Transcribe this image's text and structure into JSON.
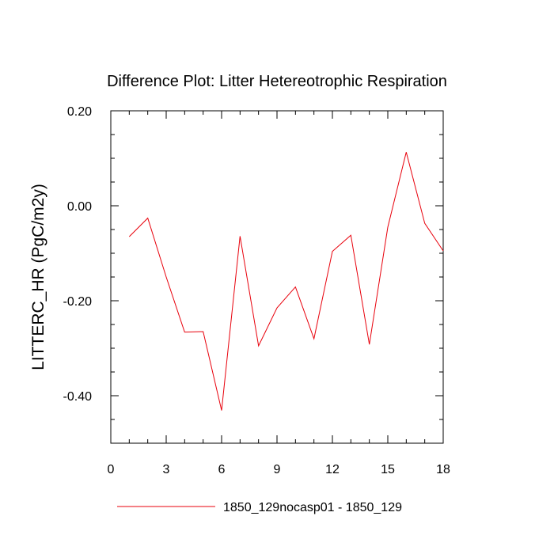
{
  "chart_data": {
    "type": "line",
    "title": "Difference Plot: Litter Hetereotrophic Respiration",
    "xlabel": "",
    "ylabel": "LITTERC_HR  (PgC/m2y)",
    "xlim": [
      0,
      18
    ],
    "ylim": [
      -0.5,
      0.2
    ],
    "x_ticks": [
      0,
      3,
      6,
      9,
      12,
      15,
      18
    ],
    "x_tick_labels": [
      "0",
      "3",
      "6",
      "9",
      "12",
      "15",
      "18"
    ],
    "y_ticks": [
      0.2,
      0.0,
      -0.2,
      -0.4
    ],
    "y_tick_labels": [
      "0.20",
      "0.00",
      "-0.20",
      "-0.40"
    ],
    "grid": false,
    "legend_position": "bottom",
    "series": [
      {
        "name": "1850_129nocasp01 - 1850_129",
        "color": "#e8000b",
        "x": [
          1,
          2,
          3,
          4,
          5,
          6,
          7,
          8,
          9,
          10,
          11,
          12,
          13,
          14,
          15,
          16,
          17,
          18
        ],
        "y": [
          -0.065,
          -0.026,
          -0.15,
          -0.266,
          -0.265,
          -0.431,
          -0.064,
          -0.295,
          -0.215,
          -0.171,
          -0.28,
          -0.096,
          -0.062,
          -0.292,
          -0.045,
          0.113,
          -0.037,
          -0.095
        ]
      }
    ]
  }
}
